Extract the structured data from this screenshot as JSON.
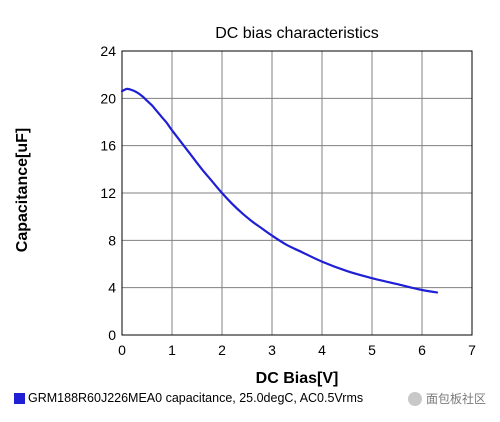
{
  "chart_data": {
    "type": "line",
    "title": "DC bias characteristics",
    "xlabel": "DC Bias[V]",
    "ylabel": "Capacitance[uF]",
    "xlim": [
      0,
      7
    ],
    "ylim": [
      0,
      24
    ],
    "xticks": [
      0,
      1,
      2,
      3,
      4,
      5,
      6,
      7
    ],
    "yticks": [
      0,
      4,
      8,
      12,
      16,
      20,
      24
    ],
    "grid": true,
    "legend_position": "bottom",
    "series": [
      {
        "name": "GRM188R60J226MEA0 capacitance, 25.0degC, AC0.5Vrms",
        "color": "#1f1fd6",
        "x": [
          0,
          0.1,
          0.2,
          0.3,
          0.4,
          0.5,
          0.6,
          0.7,
          0.8,
          0.9,
          1.0,
          1.2,
          1.4,
          1.6,
          1.8,
          2.0,
          2.2,
          2.4,
          2.6,
          2.8,
          3.0,
          3.3,
          3.6,
          4.0,
          4.5,
          5.0,
          5.5,
          6.0,
          6.3
        ],
        "y": [
          20.6,
          20.8,
          20.7,
          20.5,
          20.2,
          19.8,
          19.4,
          18.9,
          18.4,
          17.9,
          17.3,
          16.2,
          15.1,
          14.0,
          13.0,
          12.0,
          11.1,
          10.3,
          9.6,
          9.0,
          8.4,
          7.6,
          7.0,
          6.2,
          5.4,
          4.8,
          4.3,
          3.8,
          3.6
        ]
      }
    ]
  },
  "watermark": "面包板社区"
}
